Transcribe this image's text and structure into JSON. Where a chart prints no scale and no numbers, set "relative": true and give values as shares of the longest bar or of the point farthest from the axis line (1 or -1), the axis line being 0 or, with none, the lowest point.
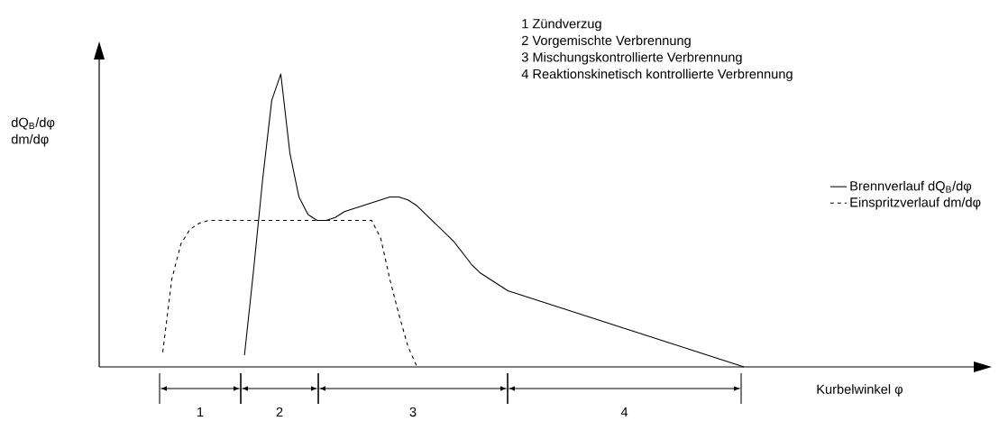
{
  "chart_data": {
    "type": "line",
    "relative": true,
    "ylabel": "dQ$_{B}$/dφ dm/dφ",
    "annotations": [
      "1   Zündverzug",
      "2   Vorgemischte Verbrennung",
      "3   Mischungskontrollierte Verbrennung",
      "4   Reaktionskinetisch kontrollierte Verbrennung",
      "1",
      "2",
      "3",
      "4",
      "Kurbelwinkel φ"
    ],
    "categories": [
      null,
      null,
      null,
      null,
      null,
      null,
      null,
      null,
      null,
      null,
      null,
      null,
      null,
      null,
      null,
      null,
      null,
      null,
      null,
      null,
      null,
      null,
      null,
      null,
      null,
      null,
      null,
      null,
      null,
      null,
      null,
      null,
      null,
      null,
      null,
      null,
      null,
      null,
      null,
      null,
      null,
      null,
      null,
      null,
      null,
      null,
      null,
      null,
      null,
      null,
      null,
      null,
      null,
      null,
      null,
      null,
      null,
      null,
      null,
      null,
      null,
      null,
      null,
      null,
      null,
      null,
      null,
      null,
      null,
      null,
      null,
      null
    ],
    "series": [
      {
        "name": "Brennverlauf  dQ$_{B}$/dφ",
        "color": "#000000",
        "line_style": "solid",
        "values": [
          null,
          null,
          null,
          null,
          null,
          null,
          null,
          null,
          null,
          null,
          null,
          null,
          null,
          null,
          null,
          null,
          0.04,
          0.33,
          0.64,
          0.91,
          1.0,
          0.73,
          0.58,
          0.52,
          0.5,
          0.5,
          0.51,
          0.53,
          0.54,
          0.55,
          0.56,
          0.57,
          0.58,
          0.58,
          0.57,
          0.55,
          0.52,
          0.49,
          0.46,
          0.43,
          0.39,
          0.35,
          0.32,
          0.3,
          0.28,
          0.26,
          0.25,
          0.24,
          0.23,
          0.22,
          0.21,
          0.2,
          0.19,
          0.18,
          0.17,
          0.16,
          0.15,
          0.14,
          0.13,
          0.12,
          0.11,
          0.1,
          0.09,
          0.08,
          0.07,
          0.06,
          0.05,
          0.04,
          0.03,
          0.02,
          0.01,
          0.0
        ]
      },
      {
        "name": "Einspritzverlauf  dm/dφ",
        "color": "#000000",
        "line_style": "dashed",
        "values": [
          null,
          null,
          null,
          null,
          null,
          null,
          null,
          0.05,
          0.3,
          0.42,
          0.47,
          0.49,
          0.5,
          0.5,
          0.5,
          0.5,
          0.5,
          0.5,
          0.5,
          0.5,
          0.5,
          0.5,
          0.5,
          0.5,
          0.5,
          0.5,
          0.5,
          0.5,
          0.5,
          0.5,
          0.5,
          0.44,
          0.3,
          0.18,
          0.07,
          0.0,
          null,
          null,
          null,
          null,
          null,
          null,
          null,
          null,
          null,
          null,
          null,
          null,
          null,
          null,
          null,
          null,
          null,
          null,
          null,
          null,
          null,
          null,
          null,
          null,
          null,
          null,
          null,
          null,
          null,
          null,
          null,
          null,
          null,
          null,
          null,
          null
        ]
      }
    ],
    "legend": "right"
  }
}
